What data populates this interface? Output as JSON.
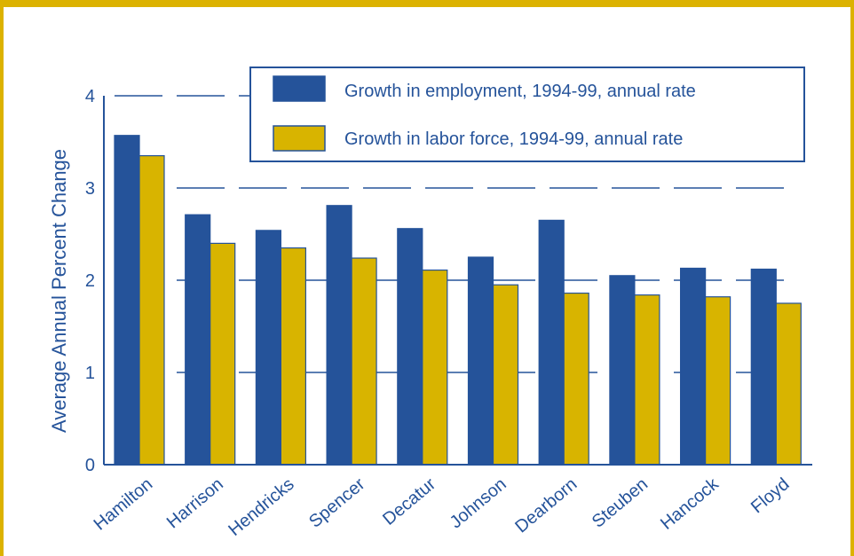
{
  "colors": {
    "frame": "#dcb200",
    "navy": "#25539a",
    "employment": "#25539a",
    "labor": "#d8b400",
    "grid": "#25539a"
  },
  "chart_data": {
    "type": "bar",
    "ylabel": "Average Annual Percent Change",
    "ylim": [
      0,
      4
    ],
    "yticks": [
      "0",
      "1",
      "2",
      "3",
      "4"
    ],
    "grid": "dashed horizontal",
    "legend_position": "top-right",
    "categories": [
      "Hamilton",
      "Harrison",
      "Hendricks",
      "Spencer",
      "Decatur",
      "Johnson",
      "Dearborn",
      "Steuben",
      "Hancock",
      "Floyd"
    ],
    "series": [
      {
        "name": "Growth in employment, 1994-99, annual rate",
        "color": "#25539a",
        "values": [
          3.57,
          2.71,
          2.54,
          2.81,
          2.56,
          2.25,
          2.65,
          2.05,
          2.13,
          2.12
        ]
      },
      {
        "name": "Growth in labor force, 1994-99, annual rate",
        "color": "#d8b400",
        "values": [
          3.35,
          2.4,
          2.35,
          2.24,
          2.11,
          1.95,
          1.86,
          1.84,
          1.82,
          1.75
        ]
      }
    ]
  }
}
